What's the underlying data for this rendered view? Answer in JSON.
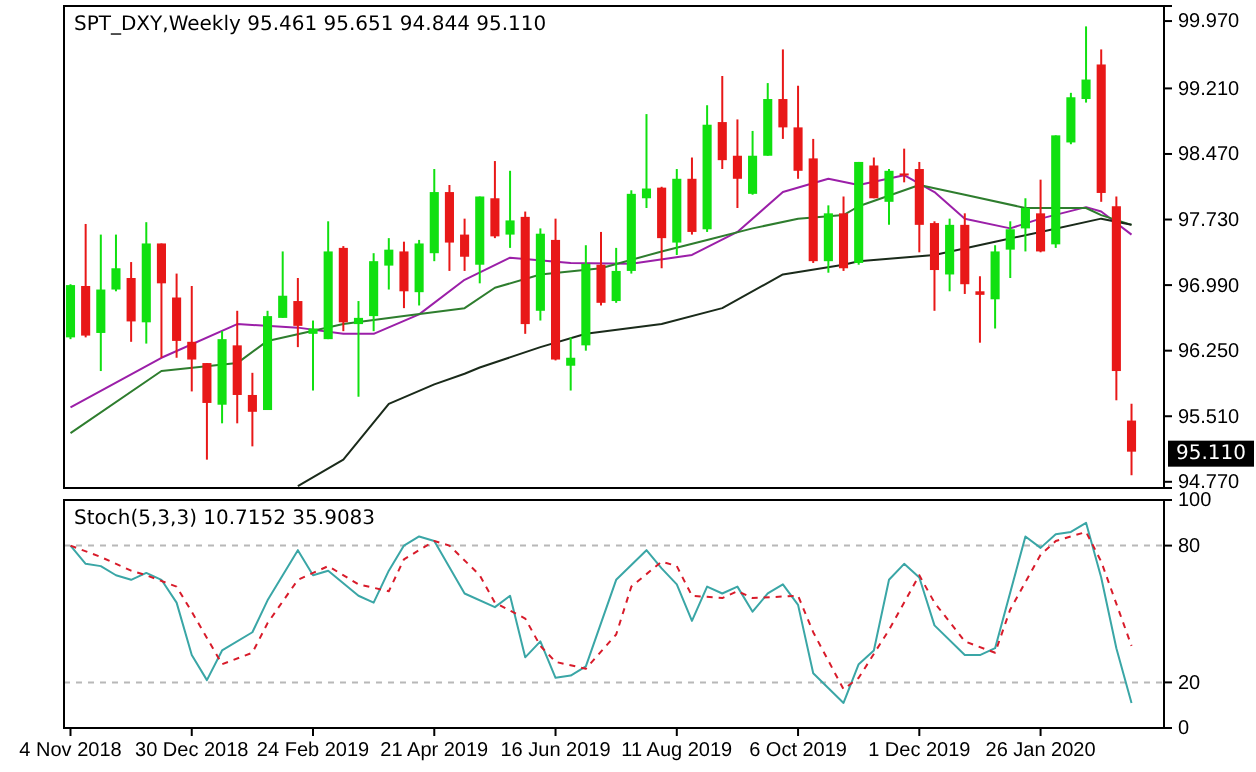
{
  "chart_data": [
    {
      "type": "candlestick",
      "title": "SPT_DXY,Weekly  95.461 95.651 94.844 95.110",
      "x": [
        "2018-11-04",
        "2018-11-11",
        "2018-11-18",
        "2018-11-25",
        "2018-12-02",
        "2018-12-09",
        "2018-12-16",
        "2018-12-23",
        "2018-12-30",
        "2019-01-06",
        "2019-01-13",
        "2019-01-20",
        "2019-01-27",
        "2019-02-03",
        "2019-02-10",
        "2019-02-17",
        "2019-02-24",
        "2019-03-03",
        "2019-03-10",
        "2019-03-17",
        "2019-03-24",
        "2019-03-31",
        "2019-04-07",
        "2019-04-14",
        "2019-04-21",
        "2019-04-28",
        "2019-05-05",
        "2019-05-12",
        "2019-05-19",
        "2019-05-26",
        "2019-06-02",
        "2019-06-09",
        "2019-06-16",
        "2019-06-23",
        "2019-06-30",
        "2019-07-07",
        "2019-07-14",
        "2019-07-21",
        "2019-07-28",
        "2019-08-04",
        "2019-08-11",
        "2019-08-18",
        "2019-08-25",
        "2019-09-01",
        "2019-09-08",
        "2019-09-15",
        "2019-09-22",
        "2019-09-29",
        "2019-10-06",
        "2019-10-13",
        "2019-10-20",
        "2019-10-27",
        "2019-11-03",
        "2019-11-10",
        "2019-11-17",
        "2019-11-24",
        "2019-12-01",
        "2019-12-08",
        "2019-12-15",
        "2019-12-22",
        "2019-12-29",
        "2020-01-05",
        "2020-01-12",
        "2020-01-19",
        "2020-01-26",
        "2020-02-02",
        "2020-02-09",
        "2020-02-16",
        "2020-02-23",
        "2020-03-01",
        "2020-03-08"
      ],
      "ohlc": [
        [
          96.4,
          97.0,
          96.38,
          96.99
        ],
        [
          96.98,
          97.68,
          96.4,
          96.42
        ],
        [
          96.45,
          97.56,
          96.02,
          96.94
        ],
        [
          96.94,
          97.56,
          96.92,
          97.18
        ],
        [
          97.07,
          97.25,
          96.35,
          96.58
        ],
        [
          96.57,
          97.7,
          96.33,
          97.46
        ],
        [
          97.46,
          97.46,
          96.17,
          97.01
        ],
        [
          96.85,
          97.12,
          96.17,
          96.36
        ],
        [
          96.35,
          96.98,
          95.79,
          96.15
        ],
        [
          96.11,
          96.11,
          95.02,
          95.66
        ],
        [
          95.64,
          96.47,
          95.43,
          96.38
        ],
        [
          96.31,
          96.7,
          95.43,
          95.75
        ],
        [
          95.75,
          96.0,
          95.17,
          95.56
        ],
        [
          95.58,
          96.7,
          95.58,
          96.64
        ],
        [
          96.62,
          97.37,
          96.62,
          96.87
        ],
        [
          96.81,
          97.07,
          96.29,
          96.53
        ],
        [
          96.44,
          96.59,
          95.8,
          96.5
        ],
        [
          96.38,
          97.71,
          96.38,
          97.37
        ],
        [
          97.41,
          97.43,
          96.47,
          96.57
        ],
        [
          96.55,
          96.81,
          95.73,
          96.62
        ],
        [
          96.64,
          97.35,
          96.47,
          97.26
        ],
        [
          97.21,
          97.52,
          96.94,
          97.39
        ],
        [
          97.37,
          97.48,
          96.73,
          96.92
        ],
        [
          96.91,
          97.5,
          96.76,
          97.46
        ],
        [
          97.35,
          98.3,
          97.26,
          98.04
        ],
        [
          98.04,
          98.12,
          97.15,
          97.47
        ],
        [
          97.56,
          97.74,
          97.15,
          97.31
        ],
        [
          97.22,
          97.99,
          97.01,
          97.99
        ],
        [
          97.97,
          98.39,
          97.52,
          97.54
        ],
        [
          97.56,
          98.28,
          97.41,
          97.72
        ],
        [
          97.76,
          97.82,
          96.44,
          96.55
        ],
        [
          96.7,
          97.63,
          96.59,
          97.57
        ],
        [
          97.5,
          97.74,
          96.14,
          96.15
        ],
        [
          96.08,
          96.4,
          95.8,
          96.17
        ],
        [
          96.31,
          97.44,
          96.25,
          97.23
        ],
        [
          97.22,
          97.59,
          96.76,
          96.79
        ],
        [
          96.81,
          97.41,
          96.79,
          97.15
        ],
        [
          97.15,
          98.06,
          97.12,
          98.02
        ],
        [
          97.97,
          98.92,
          97.86,
          98.08
        ],
        [
          98.09,
          98.1,
          97.18,
          97.52
        ],
        [
          97.47,
          98.3,
          97.33,
          98.19
        ],
        [
          98.19,
          98.43,
          97.56,
          97.59
        ],
        [
          97.62,
          99.02,
          97.59,
          98.8
        ],
        [
          98.83,
          99.35,
          98.3,
          98.4
        ],
        [
          98.45,
          98.86,
          97.86,
          98.19
        ],
        [
          98.02,
          98.73,
          98.01,
          98.45
        ],
        [
          98.45,
          99.27,
          98.45,
          99.09
        ],
        [
          99.09,
          99.65,
          98.64,
          98.77
        ],
        [
          98.77,
          99.24,
          98.19,
          98.28
        ],
        [
          98.42,
          98.64,
          97.24,
          97.26
        ],
        [
          97.26,
          97.89,
          97.13,
          97.8
        ],
        [
          97.8,
          97.99,
          97.15,
          97.18
        ],
        [
          97.24,
          98.38,
          97.22,
          98.38
        ],
        [
          98.34,
          98.43,
          97.97,
          97.97
        ],
        [
          97.93,
          98.3,
          97.67,
          98.28
        ],
        [
          98.25,
          98.53,
          98.15,
          98.23
        ],
        [
          98.3,
          98.38,
          97.36,
          97.67
        ],
        [
          97.69,
          97.71,
          96.7,
          97.16
        ],
        [
          97.11,
          97.74,
          96.92,
          97.67
        ],
        [
          97.67,
          97.8,
          96.89,
          97.0
        ],
        [
          96.92,
          97.09,
          96.34,
          96.88
        ],
        [
          96.83,
          97.44,
          96.5,
          97.37
        ],
        [
          97.39,
          97.71,
          97.07,
          97.62
        ],
        [
          97.63,
          97.97,
          97.37,
          97.86
        ],
        [
          97.8,
          98.18,
          97.36,
          97.37
        ],
        [
          97.45,
          98.68,
          97.41,
          98.68
        ],
        [
          98.6,
          99.16,
          98.58,
          99.11
        ],
        [
          99.09,
          99.91,
          99.05,
          99.31
        ],
        [
          99.48,
          99.65,
          97.93,
          98.03
        ],
        [
          97.88,
          97.99,
          95.69,
          96.02
        ],
        [
          95.461,
          95.651,
          94.844,
          95.11
        ]
      ],
      "colors": [
        "#10e010",
        "#e81818",
        "#10e010",
        "#10e010",
        "#e81818",
        "#10e010",
        "#e81818",
        "#e81818",
        "#e81818",
        "#e81818",
        "#10e010",
        "#e81818",
        "#e81818",
        "#10e010",
        "#10e010",
        "#e81818",
        "#10e010",
        "#10e010",
        "#e81818",
        "#10e010",
        "#10e010",
        "#10e010",
        "#e81818",
        "#10e010",
        "#10e010",
        "#e81818",
        "#e81818",
        "#10e010",
        "#e81818",
        "#10e010",
        "#e81818",
        "#10e010",
        "#e81818",
        "#10e010",
        "#10e010",
        "#e81818",
        "#10e010",
        "#10e010",
        "#10e010",
        "#e81818",
        "#10e010",
        "#e81818",
        "#10e010",
        "#e81818",
        "#e81818",
        "#10e010",
        "#10e010",
        "#e81818",
        "#e81818",
        "#e81818",
        "#10e010",
        "#e81818",
        "#10e010",
        "#e81818",
        "#10e010",
        "#e81818",
        "#e81818",
        "#e81818",
        "#10e010",
        "#e81818",
        "#e81818",
        "#10e010",
        "#10e010",
        "#10e010",
        "#e81818",
        "#10e010",
        "#10e010",
        "#10e010",
        "#e81818",
        "#e81818",
        "#e81818"
      ],
      "series": [
        {
          "type": "line",
          "color": "#9b1fa8",
          "x": [
            "2018-11-04",
            "2018-12-16",
            "2019-01-20",
            "2019-02-17",
            "2019-03-10",
            "2019-03-24",
            "2019-04-14",
            "2019-05-05",
            "2019-05-26",
            "2019-06-23",
            "2019-07-21",
            "2019-08-18",
            "2019-09-08",
            "2019-09-29",
            "2019-10-20",
            "2019-11-03",
            "2019-11-24",
            "2019-12-08",
            "2019-12-22",
            "2020-01-12",
            "2020-01-26",
            "2020-02-16",
            "2020-02-23",
            "2020-03-08"
          ],
          "values": [
            95.61,
            96.17,
            96.55,
            96.51,
            96.44,
            96.44,
            96.66,
            97.05,
            97.3,
            97.24,
            97.23,
            97.33,
            97.59,
            98.04,
            98.19,
            98.12,
            98.23,
            98.04,
            97.74,
            97.63,
            97.74,
            97.87,
            97.82,
            97.56
          ]
        },
        {
          "type": "line",
          "color": "#2e7d2e",
          "x": [
            "2018-11-04",
            "2018-12-16",
            "2019-01-20",
            "2019-02-03",
            "2019-03-10",
            "2019-04-07",
            "2019-05-05",
            "2019-05-19",
            "2019-06-09",
            "2019-07-07",
            "2019-08-04",
            "2019-08-25",
            "2019-09-15",
            "2019-10-06",
            "2019-10-27",
            "2019-11-03",
            "2019-12-01",
            "2019-12-22",
            "2020-01-19",
            "2020-02-16",
            "2020-02-23",
            "2020-03-08"
          ],
          "values": [
            95.32,
            96.02,
            96.11,
            96.36,
            96.55,
            96.64,
            96.73,
            96.96,
            97.11,
            97.18,
            97.37,
            97.5,
            97.63,
            97.74,
            97.78,
            97.88,
            98.12,
            98.01,
            97.86,
            97.86,
            97.78,
            97.67
          ]
        },
        {
          "type": "line",
          "color": "#1a2a1a",
          "x": [
            "2019-02-17",
            "2019-03-10",
            "2019-03-31",
            "2019-04-21",
            "2019-05-05",
            "2019-05-12",
            "2019-06-09",
            "2019-06-30",
            "2019-08-04",
            "2019-09-01",
            "2019-09-29",
            "2019-10-27",
            "2019-11-03",
            "2019-12-08",
            "2020-01-05",
            "2020-01-26",
            "2020-02-23",
            "2020-03-08"
          ],
          "values": [
            94.72,
            95.02,
            95.65,
            95.87,
            95.99,
            96.06,
            96.29,
            96.44,
            96.55,
            96.73,
            97.11,
            97.22,
            97.26,
            97.33,
            97.48,
            97.59,
            97.74,
            97.67
          ]
        }
      ],
      "xlim": [
        "2018-11-01",
        "2020-03-23"
      ],
      "ylim": [
        94.7,
        100.14
      ],
      "yticks": [
        {
          "value": 94.77,
          "label": "94.770"
        },
        {
          "value": 95.51,
          "label": "95.510"
        },
        {
          "value": 96.25,
          "label": "96.250"
        },
        {
          "value": 96.99,
          "label": "96.990"
        },
        {
          "value": 97.73,
          "label": "97.730"
        },
        {
          "value": 98.47,
          "label": "98.470"
        },
        {
          "value": 99.21,
          "label": "99.210"
        },
        {
          "value": 99.97,
          "label": "99.970"
        }
      ],
      "tick_labels": "y",
      "annotations": [
        {
          "text": "95.110",
          "y": 95.11
        }
      ]
    },
    {
      "type": "line",
      "title": "Stoch(5,3,3) 10.7152 35.9083",
      "series": [
        {
          "color": "#3aa6a6",
          "x": [
            "2018-11-04",
            "2018-11-11",
            "2018-11-18",
            "2018-11-25",
            "2018-12-02",
            "2018-12-09",
            "2018-12-16",
            "2018-12-23",
            "2018-12-30",
            "2019-01-06",
            "2019-01-13",
            "2019-01-27",
            "2019-02-03",
            "2019-02-17",
            "2019-02-24",
            "2019-03-03",
            "2019-03-17",
            "2019-03-24",
            "2019-03-31",
            "2019-04-07",
            "2019-04-14",
            "2019-04-21",
            "2019-05-05",
            "2019-05-19",
            "2019-05-26",
            "2019-06-02",
            "2019-06-09",
            "2019-06-16",
            "2019-06-23",
            "2019-06-30",
            "2019-07-14",
            "2019-07-28",
            "2019-08-04",
            "2019-08-11",
            "2019-08-18",
            "2019-08-25",
            "2019-09-01",
            "2019-09-08",
            "2019-09-15",
            "2019-09-22",
            "2019-09-29",
            "2019-10-06",
            "2019-10-13",
            "2019-10-27",
            "2019-11-03",
            "2019-11-10",
            "2019-11-17",
            "2019-11-24",
            "2019-12-01",
            "2019-12-08",
            "2019-12-22",
            "2019-12-29",
            "2020-01-05",
            "2020-01-19",
            "2020-01-26",
            "2020-02-02",
            "2020-02-09",
            "2020-02-16",
            "2020-02-23",
            "2020-03-01",
            "2020-03-08"
          ],
          "values": [
            80,
            72,
            71,
            67,
            65,
            68,
            65,
            55,
            32,
            21,
            34,
            42,
            56,
            78,
            67,
            69,
            58,
            55,
            69,
            80,
            84,
            82,
            59,
            53,
            58,
            31,
            38,
            22,
            23,
            27,
            65,
            78,
            70,
            63,
            47,
            62,
            59,
            62,
            51,
            59,
            63,
            54,
            24,
            11,
            28,
            34,
            65,
            72,
            66,
            45,
            32,
            32,
            35,
            84,
            79,
            85,
            86,
            90,
            66,
            35,
            11
          ]
        },
        {
          "color": "#d81b2a",
          "line_style": "dashed",
          "x": [
            "2018-11-04",
            "2018-11-18",
            "2018-12-02",
            "2018-12-09",
            "2018-12-23",
            "2018-12-30",
            "2019-01-13",
            "2019-01-27",
            "2019-02-03",
            "2019-02-17",
            "2019-03-03",
            "2019-03-17",
            "2019-03-31",
            "2019-04-07",
            "2019-04-21",
            "2019-04-28",
            "2019-05-12",
            "2019-05-19",
            "2019-06-02",
            "2019-06-09",
            "2019-06-16",
            "2019-06-30",
            "2019-07-14",
            "2019-07-21",
            "2019-08-04",
            "2019-08-11",
            "2019-08-18",
            "2019-09-01",
            "2019-09-08",
            "2019-09-15",
            "2019-10-06",
            "2019-10-13",
            "2019-10-27",
            "2019-11-03",
            "2019-11-17",
            "2019-12-01",
            "2019-12-08",
            "2019-12-22",
            "2020-01-05",
            "2020-01-12",
            "2020-01-26",
            "2020-02-02",
            "2020-02-16",
            "2020-02-23",
            "2020-03-08"
          ],
          "values": [
            80,
            75,
            69,
            67,
            62,
            51,
            28,
            33,
            46,
            65,
            71,
            63,
            60,
            74,
            82,
            80,
            67,
            55,
            48,
            36,
            29,
            26,
            41,
            62,
            73,
            71,
            58,
            57,
            60,
            57,
            58,
            42,
            17,
            22,
            43,
            67,
            55,
            38,
            33,
            52,
            76,
            82,
            86,
            73,
            36
          ]
        }
      ],
      "xlim": [
        "2018-11-01",
        "2020-03-23"
      ],
      "xticks": [
        {
          "value": "2018-11-04",
          "label": "4 Nov 2018"
        },
        {
          "value": "2018-12-30",
          "label": "30 Dec 2018"
        },
        {
          "value": "2019-02-24",
          "label": "24 Feb 2019"
        },
        {
          "value": "2019-04-21",
          "label": "21 Apr 2019"
        },
        {
          "value": "2019-06-16",
          "label": "16 Jun 2019"
        },
        {
          "value": "2019-08-11",
          "label": "11 Aug 2019"
        },
        {
          "value": "2019-10-06",
          "label": "6 Oct 2019"
        },
        {
          "value": "2019-12-01",
          "label": "1 Dec 2019"
        },
        {
          "value": "2020-01-26",
          "label": "26 Jan 2020"
        }
      ],
      "ylim": [
        0,
        100
      ],
      "yticks": [
        0,
        20,
        80,
        100
      ],
      "ref_lines": [
        {
          "axis": "y",
          "value": 20,
          "color": "#b8b8b8",
          "line_style": "dashed"
        },
        {
          "axis": "y",
          "value": 80,
          "color": "#b8b8b8",
          "line_style": "dashed"
        }
      ]
    }
  ]
}
